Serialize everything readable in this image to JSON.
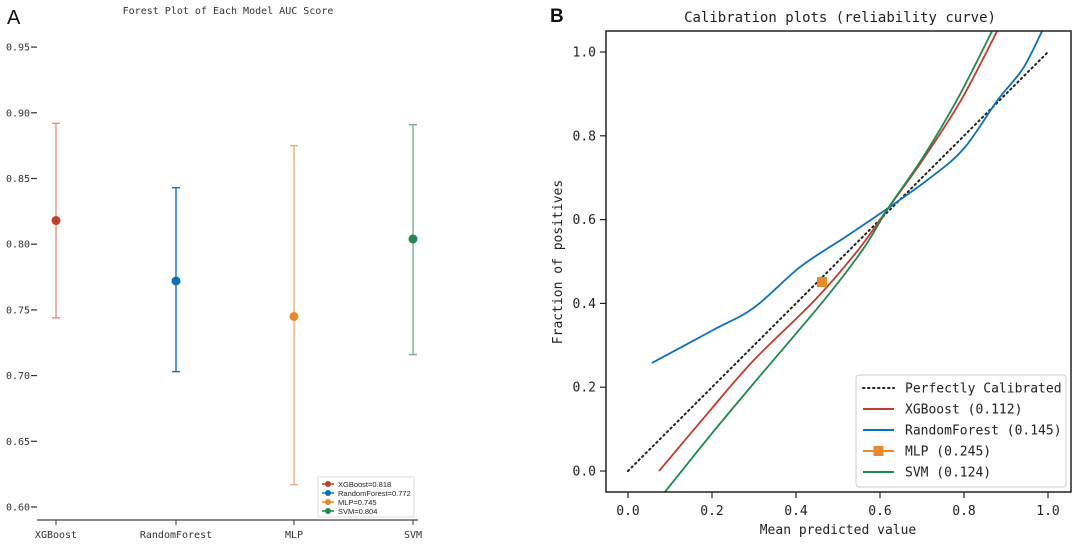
{
  "panels": {
    "a_label": "A",
    "b_label": "B"
  },
  "chart_data": [
    {
      "type": "forest",
      "title": "Forest Plot of Each Model AUC Score",
      "xlabel": "",
      "ylabel": "",
      "categories": [
        "XGBoost",
        "RandomForest",
        "MLP",
        "SVM"
      ],
      "values": [
        0.818,
        0.772,
        0.745,
        0.804
      ],
      "lower": [
        0.744,
        0.703,
        0.617,
        0.716
      ],
      "upper": [
        0.892,
        0.843,
        0.875,
        0.891
      ],
      "colors": [
        "#c43c2c",
        "#0a72bd",
        "#e8892a",
        "#1e8a4e"
      ],
      "ci_colors": [
        "#e3938a",
        "#0a72bd",
        "#f2b078",
        "#6fb58c"
      ],
      "ylim": [
        0.59,
        0.96
      ],
      "yticks": [
        0.6,
        0.65,
        0.7,
        0.75,
        0.8,
        0.85,
        0.9,
        0.95
      ],
      "ytick_labels": [
        "0.60",
        "0.65",
        "0.70",
        "0.75",
        "0.80",
        "0.85",
        "0.90",
        "0.95"
      ],
      "legend": {
        "placement": "lower-right",
        "entries": [
          "XGBoost=0.818",
          "RandomForest=0.772",
          "MLP=0.745",
          "SVM=0.804"
        ]
      },
      "grid": false
    },
    {
      "type": "line",
      "title": "Calibration plots  (reliability curve)",
      "xlabel": "Mean predicted value",
      "ylabel": "Fraction of positives",
      "xlim": [
        -0.05,
        1.05
      ],
      "ylim": [
        -0.05,
        1.05
      ],
      "xticks": [
        0.0,
        0.2,
        0.4,
        0.6,
        0.8,
        1.0
      ],
      "xtick_labels": [
        "0.0",
        "0.2",
        "0.4",
        "0.6",
        "0.8",
        "1.0"
      ],
      "yticks": [
        0.0,
        0.2,
        0.4,
        0.6,
        0.8,
        1.0
      ],
      "ytick_labels": [
        "0.0",
        "0.2",
        "0.4",
        "0.6",
        "0.8",
        "1.0"
      ],
      "grid": false,
      "series": [
        {
          "name": "Perfectly Calibrated",
          "label": "Perfectly Calibrated",
          "color": "#222222",
          "style": "dotted",
          "x": [
            0.0,
            1.0
          ],
          "y": [
            0.0,
            1.0
          ]
        },
        {
          "name": "XGBoost",
          "label": "XGBoost (0.112)",
          "color": "#c43c2c",
          "style": "solid",
          "x": [
            0.074,
            0.2,
            0.3,
            0.445,
            0.55,
            0.62,
            0.7,
            0.793,
            0.879
          ],
          "y": [
            0.0,
            0.15,
            0.265,
            0.408,
            0.53,
            0.628,
            0.74,
            0.885,
            1.05
          ]
        },
        {
          "name": "RandomForest",
          "label": "RandomForest (0.145)",
          "color": "#0a72bd",
          "style": "solid",
          "x": [
            0.057,
            0.2,
            0.3,
            0.41,
            0.52,
            0.62,
            0.72,
            0.8,
            0.88,
            0.94,
            0.986
          ],
          "y": [
            0.258,
            0.335,
            0.39,
            0.487,
            0.56,
            0.628,
            0.7,
            0.77,
            0.885,
            0.96,
            1.05
          ]
        },
        {
          "name": "MLP",
          "label": "MLP (0.245)",
          "color": "#e8892a",
          "style": "marker",
          "x": [
            0.462
          ],
          "y": [
            0.451
          ]
        },
        {
          "name": "SVM",
          "label": "SVM (0.124)",
          "color": "#1e8a4e",
          "style": "solid",
          "x": [
            0.088,
            0.2,
            0.3,
            0.467,
            0.56,
            0.62,
            0.7,
            0.783,
            0.867
          ],
          "y": [
            -0.05,
            0.09,
            0.21,
            0.408,
            0.53,
            0.628,
            0.745,
            0.885,
            1.05
          ]
        }
      ],
      "legend": {
        "placement": "lower-right",
        "entries": [
          "Perfectly Calibrated",
          "XGBoost (0.112)",
          "RandomForest (0.145)",
          "MLP (0.245)",
          "SVM (0.124)"
        ]
      }
    }
  ]
}
